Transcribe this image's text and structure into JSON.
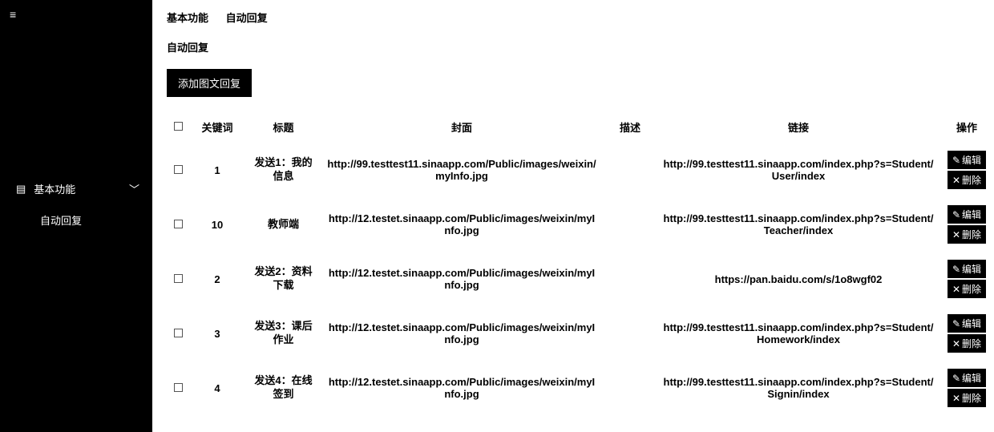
{
  "sidebar": {
    "nav_item": {
      "label": "基本功能",
      "icon": "list-icon"
    },
    "sub_item": {
      "label": "自动回复"
    }
  },
  "breadcrumb": {
    "a": "基本功能",
    "b": "自动回复"
  },
  "section_title": "自动回复",
  "add_button": "添加图文回复",
  "columns": {
    "keyword": "关键词",
    "title": "标题",
    "cover": "封面",
    "desc": "描述",
    "link": "链接",
    "action": "操作"
  },
  "actions": {
    "edit": "编辑",
    "delete": "删除"
  },
  "rows": [
    {
      "keyword": "1",
      "title": "发送1：我的信息",
      "cover": "http://99.testtest11.sinaapp.com/Public/images/weixin/myInfo.jpg",
      "desc": "",
      "link": "http://99.testtest11.sinaapp.com/index.php?s=Student/User/index"
    },
    {
      "keyword": "10",
      "title": "教师端",
      "cover": "http://12.testet.sinaapp.com/Public/images/weixin/myInfo.jpg",
      "desc": "",
      "link": "http://99.testtest11.sinaapp.com/index.php?s=Student/Teacher/index"
    },
    {
      "keyword": "2",
      "title": "发送2：资料下载",
      "cover": "http://12.testet.sinaapp.com/Public/images/weixin/myInfo.jpg",
      "desc": "",
      "link": "https://pan.baidu.com/s/1o8wgf02"
    },
    {
      "keyword": "3",
      "title": "发送3：课后作业",
      "cover": "http://12.testet.sinaapp.com/Public/images/weixin/myInfo.jpg",
      "desc": "",
      "link": "http://99.testtest11.sinaapp.com/index.php?s=Student/Homework/index"
    },
    {
      "keyword": "4",
      "title": "发送4：在线签到",
      "cover": "http://12.testet.sinaapp.com/Public/images/weixin/myInfo.jpg",
      "desc": "",
      "link": "http://99.testtest11.sinaapp.com/index.php?s=Student/Signin/index"
    }
  ]
}
